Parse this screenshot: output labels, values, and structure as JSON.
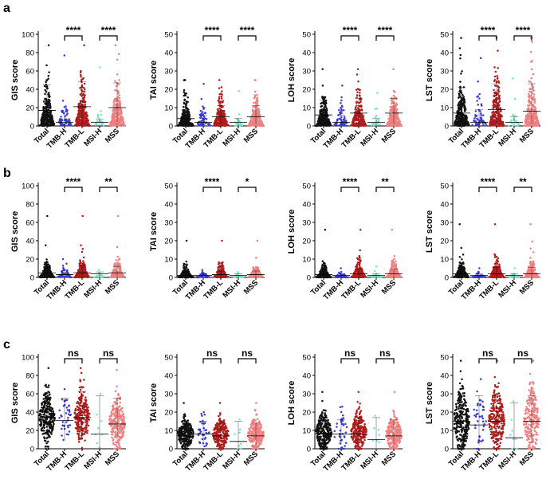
{
  "panel_labels": [
    "a",
    "b",
    "c"
  ],
  "colors": {
    "Total": "#111111",
    "TMB-H": "#3a3ad6",
    "TMB-L": "#b01c1c",
    "MSI-H": "#72e8c8",
    "MSS": "#f07f7f",
    "axis": "#000000"
  },
  "chart_data": [
    {
      "type": "scatter",
      "row": 0,
      "col": 0,
      "ylabel": "GIS score",
      "ylim": [
        0,
        100
      ],
      "yticks": [
        0,
        20,
        40,
        60,
        80,
        100
      ],
      "categories": [
        "Total",
        "TMB-H",
        "TMB-L",
        "MSI-H",
        "MSS"
      ],
      "series": [
        {
          "name": "Total",
          "max": 88,
          "n": 300,
          "scale": 16,
          "center": 17,
          "low": 1,
          "high": 45
        },
        {
          "name": "TMB-H",
          "max": 77,
          "n": 60,
          "scale": 10,
          "center": 4,
          "low": 1,
          "high": 15
        },
        {
          "name": "TMB-L",
          "max": 88,
          "n": 260,
          "scale": 18,
          "center": 21,
          "low": 1,
          "high": 48
        },
        {
          "name": "MSI-H",
          "max": 64,
          "n": 22,
          "scale": 5,
          "center": 4,
          "low": 1,
          "high": 7
        },
        {
          "name": "MSS",
          "max": 88,
          "n": 260,
          "scale": 18,
          "center": 20,
          "low": 1,
          "high": 47
        }
      ],
      "comparisons": [
        {
          "from": "TMB-H",
          "to": "TMB-L",
          "label": "****"
        },
        {
          "from": "MSI-H",
          "to": "MSS",
          "label": "****"
        }
      ]
    },
    {
      "type": "scatter",
      "row": 0,
      "col": 1,
      "ylabel": "TAI score",
      "ylim": [
        0,
        50
      ],
      "yticks": [
        0,
        10,
        20,
        30,
        40,
        50
      ],
      "categories": [
        "Total",
        "TMB-H",
        "TMB-L",
        "MSI-H",
        "MSS"
      ],
      "series": [
        {
          "name": "Total",
          "max": 25,
          "n": 280,
          "scale": 5,
          "center": 4,
          "low": 1,
          "high": 9
        },
        {
          "name": "TMB-H",
          "max": 23,
          "n": 60,
          "scale": 4,
          "center": 2,
          "low": 0.5,
          "high": 6
        },
        {
          "name": "TMB-L",
          "max": 25,
          "n": 240,
          "scale": 6,
          "center": 5,
          "low": 1,
          "high": 11
        },
        {
          "name": "MSI-H",
          "max": 19,
          "n": 22,
          "scale": 3,
          "center": 2,
          "low": 0.5,
          "high": 4
        },
        {
          "name": "MSS",
          "max": 25,
          "n": 240,
          "scale": 6,
          "center": 5,
          "low": 1,
          "high": 11
        }
      ],
      "comparisons": [
        {
          "from": "TMB-H",
          "to": "TMB-L",
          "label": "****"
        },
        {
          "from": "MSI-H",
          "to": "MSS",
          "label": "****"
        }
      ]
    },
    {
      "type": "scatter",
      "row": 0,
      "col": 2,
      "ylabel": "LOH score",
      "ylim": [
        0,
        50
      ],
      "yticks": [
        0,
        10,
        20,
        30,
        40,
        50
      ],
      "categories": [
        "Total",
        "TMB-H",
        "TMB-L",
        "MSI-H",
        "MSS"
      ],
      "series": [
        {
          "name": "Total",
          "max": 31,
          "n": 280,
          "scale": 6,
          "center": 6,
          "low": 1,
          "high": 14
        },
        {
          "name": "TMB-H",
          "max": 22,
          "n": 60,
          "scale": 4,
          "center": 2,
          "low": 0.5,
          "high": 6
        },
        {
          "name": "TMB-L",
          "max": 31,
          "n": 240,
          "scale": 7,
          "center": 7,
          "low": 1,
          "high": 15
        },
        {
          "name": "MSI-H",
          "max": 18,
          "n": 22,
          "scale": 3,
          "center": 2,
          "low": 0.5,
          "high": 4
        },
        {
          "name": "MSS",
          "max": 31,
          "n": 240,
          "scale": 7,
          "center": 7,
          "low": 1,
          "high": 15
        }
      ],
      "comparisons": [
        {
          "from": "TMB-H",
          "to": "TMB-L",
          "label": "****"
        },
        {
          "from": "MSI-H",
          "to": "MSS",
          "label": "****"
        }
      ]
    },
    {
      "type": "scatter",
      "row": 0,
      "col": 3,
      "ylabel": "LST score",
      "ylim": [
        0,
        50
      ],
      "yticks": [
        0,
        10,
        20,
        30,
        40,
        50
      ],
      "categories": [
        "Total",
        "TMB-H",
        "TMB-L",
        "MSI-H",
        "MSS"
      ],
      "series": [
        {
          "name": "Total",
          "max": 48,
          "n": 280,
          "scale": 9,
          "center": 7,
          "low": 1,
          "high": 21
        },
        {
          "name": "TMB-H",
          "max": 37,
          "n": 60,
          "scale": 6,
          "center": 2,
          "low": 0.5,
          "high": 9
        },
        {
          "name": "TMB-L",
          "max": 48,
          "n": 240,
          "scale": 10,
          "center": 9,
          "low": 1,
          "high": 23
        },
        {
          "name": "MSI-H",
          "max": 26,
          "n": 22,
          "scale": 4,
          "center": 2,
          "low": 0.5,
          "high": 5
        },
        {
          "name": "MSS",
          "max": 48,
          "n": 240,
          "scale": 10,
          "center": 8,
          "low": 1,
          "high": 23
        }
      ],
      "comparisons": [
        {
          "from": "TMB-H",
          "to": "TMB-L",
          "label": "****"
        },
        {
          "from": "MSI-H",
          "to": "MSS",
          "label": "****"
        }
      ]
    },
    {
      "type": "scatter",
      "row": 1,
      "col": 0,
      "ylabel": "GIS score",
      "ylim": [
        0,
        100
      ],
      "yticks": [
        0,
        20,
        40,
        60,
        80,
        100
      ],
      "categories": [
        "Total",
        "TMB-H",
        "TMB-L",
        "MSI-H",
        "MSS"
      ],
      "series": [
        {
          "name": "Total",
          "max": 67,
          "n": 260,
          "scale": 6,
          "center": 5,
          "low": 1,
          "high": 12
        },
        {
          "name": "TMB-H",
          "max": 20,
          "n": 55,
          "scale": 4,
          "center": 3,
          "low": 1,
          "high": 6
        },
        {
          "name": "TMB-L",
          "max": 67,
          "n": 220,
          "scale": 7,
          "center": 5,
          "low": 1,
          "high": 13
        },
        {
          "name": "MSI-H",
          "max": 8,
          "n": 20,
          "scale": 2,
          "center": 4,
          "low": 1,
          "high": 6
        },
        {
          "name": "MSS",
          "max": 67,
          "n": 220,
          "scale": 7,
          "center": 5,
          "low": 1,
          "high": 12
        }
      ],
      "comparisons": [
        {
          "from": "TMB-H",
          "to": "TMB-L",
          "label": "****"
        },
        {
          "from": "MSI-H",
          "to": "MSS",
          "label": "**"
        }
      ]
    },
    {
      "type": "scatter",
      "row": 1,
      "col": 1,
      "ylabel": "TAI score",
      "ylim": [
        0,
        50
      ],
      "yticks": [
        0,
        10,
        20,
        30,
        40,
        50
      ],
      "categories": [
        "Total",
        "TMB-H",
        "TMB-L",
        "MSI-H",
        "MSS"
      ],
      "series": [
        {
          "name": "Total",
          "max": 20,
          "n": 240,
          "scale": 2,
          "center": 1,
          "low": 0.3,
          "high": 3
        },
        {
          "name": "TMB-H",
          "max": 4,
          "n": 50,
          "scale": 1,
          "center": 1,
          "low": 0.3,
          "high": 2
        },
        {
          "name": "TMB-L",
          "max": 20,
          "n": 200,
          "scale": 2.5,
          "center": 1.5,
          "low": 0.3,
          "high": 3.5
        },
        {
          "name": "MSI-H",
          "max": 3,
          "n": 20,
          "scale": 0.8,
          "center": 1,
          "low": 0.3,
          "high": 2
        },
        {
          "name": "MSS",
          "max": 20,
          "n": 200,
          "scale": 2.5,
          "center": 1.5,
          "low": 0.3,
          "high": 3.5
        }
      ],
      "comparisons": [
        {
          "from": "TMB-H",
          "to": "TMB-L",
          "label": "****"
        },
        {
          "from": "MSI-H",
          "to": "MSS",
          "label": "*"
        }
      ]
    },
    {
      "type": "scatter",
      "row": 1,
      "col": 2,
      "ylabel": "LOH score",
      "ylim": [
        0,
        50
      ],
      "yticks": [
        0,
        10,
        20,
        30,
        40,
        50
      ],
      "categories": [
        "Total",
        "TMB-H",
        "TMB-L",
        "MSI-H",
        "MSS"
      ],
      "series": [
        {
          "name": "Total",
          "max": 26,
          "n": 240,
          "scale": 2.5,
          "center": 1.5,
          "low": 0.3,
          "high": 4
        },
        {
          "name": "TMB-H",
          "max": 5,
          "n": 50,
          "scale": 1.2,
          "center": 1,
          "low": 0.3,
          "high": 2
        },
        {
          "name": "TMB-L",
          "max": 26,
          "n": 200,
          "scale": 3,
          "center": 2,
          "low": 0.3,
          "high": 4.5
        },
        {
          "name": "MSI-H",
          "max": 6,
          "n": 20,
          "scale": 1,
          "center": 1,
          "low": 0.3,
          "high": 2
        },
        {
          "name": "MSS",
          "max": 26,
          "n": 200,
          "scale": 3,
          "center": 2,
          "low": 0.3,
          "high": 4.5
        }
      ],
      "comparisons": [
        {
          "from": "TMB-H",
          "to": "TMB-L",
          "label": "****"
        },
        {
          "from": "MSI-H",
          "to": "MSS",
          "label": "**"
        }
      ]
    },
    {
      "type": "scatter",
      "row": 1,
      "col": 3,
      "ylabel": "LST score",
      "ylim": [
        0,
        50
      ],
      "yticks": [
        0,
        10,
        20,
        30,
        40,
        50
      ],
      "categories": [
        "Total",
        "TMB-H",
        "TMB-L",
        "MSI-H",
        "MSS"
      ],
      "series": [
        {
          "name": "Total",
          "max": 29,
          "n": 240,
          "scale": 3,
          "center": 2,
          "low": 0.3,
          "high": 5
        },
        {
          "name": "TMB-H",
          "max": 5,
          "n": 50,
          "scale": 1.2,
          "center": 1,
          "low": 0.3,
          "high": 2
        },
        {
          "name": "TMB-L",
          "max": 29,
          "n": 200,
          "scale": 3.5,
          "center": 2,
          "low": 0.3,
          "high": 5.5
        },
        {
          "name": "MSI-H",
          "max": 5,
          "n": 20,
          "scale": 1,
          "center": 1,
          "low": 0.3,
          "high": 2
        },
        {
          "name": "MSS",
          "max": 29,
          "n": 200,
          "scale": 3.5,
          "center": 2,
          "low": 0.3,
          "high": 5.5
        }
      ],
      "comparisons": [
        {
          "from": "TMB-H",
          "to": "TMB-L",
          "label": "****"
        },
        {
          "from": "MSI-H",
          "to": "MSS",
          "label": "**"
        }
      ]
    },
    {
      "type": "scatter",
      "row": 2,
      "col": 0,
      "ylabel": "GIS score",
      "ylim": [
        0,
        100
      ],
      "yticks": [
        0,
        20,
        40,
        60,
        80,
        100
      ],
      "categories": [
        "Total",
        "TMB-H",
        "TMB-L",
        "MSI-H",
        "MSS"
      ],
      "series": [
        {
          "name": "Total",
          "max": 88,
          "n": 260,
          "mean": 34,
          "sd": 14,
          "center": 34,
          "low": 10,
          "high": 60,
          "dist": "normal"
        },
        {
          "name": "TMB-H",
          "max": 65,
          "n": 40,
          "mean": 31,
          "sd": 15,
          "center": 31,
          "low": 10,
          "high": 55,
          "dist": "normal"
        },
        {
          "name": "TMB-L",
          "max": 88,
          "n": 240,
          "mean": 34,
          "sd": 15,
          "center": 34,
          "low": 10,
          "high": 62,
          "dist": "normal"
        },
        {
          "name": "MSI-H",
          "max": 60,
          "n": 8,
          "mean": 20,
          "sd": 18,
          "center": 16,
          "low": 1,
          "high": 58,
          "dist": "normal"
        },
        {
          "name": "MSS",
          "max": 86,
          "n": 240,
          "mean": 28,
          "sd": 15,
          "center": 27,
          "low": 8,
          "high": 55,
          "dist": "normal"
        }
      ],
      "comparisons": [
        {
          "from": "TMB-H",
          "to": "TMB-L",
          "label": "ns"
        },
        {
          "from": "MSI-H",
          "to": "MSS",
          "label": "ns"
        }
      ]
    },
    {
      "type": "scatter",
      "row": 2,
      "col": 1,
      "ylabel": "TAI score",
      "ylim": [
        0,
        50
      ],
      "yticks": [
        0,
        10,
        20,
        30,
        40,
        50
      ],
      "categories": [
        "Total",
        "TMB-H",
        "TMB-L",
        "MSI-H",
        "MSS"
      ],
      "series": [
        {
          "name": "Total",
          "max": 25,
          "n": 260,
          "mean": 8,
          "sd": 4.5,
          "center": 7,
          "low": 2,
          "high": 14,
          "dist": "normal"
        },
        {
          "name": "TMB-H",
          "max": 20,
          "n": 40,
          "mean": 8,
          "sd": 4.5,
          "center": 8,
          "low": 3,
          "high": 15,
          "dist": "normal"
        },
        {
          "name": "TMB-L",
          "max": 25,
          "n": 240,
          "mean": 8,
          "sd": 4.5,
          "center": 7,
          "low": 2,
          "high": 14,
          "dist": "normal"
        },
        {
          "name": "MSI-H",
          "max": 16,
          "n": 8,
          "mean": 5,
          "sd": 5,
          "center": 4,
          "low": 0.5,
          "high": 15,
          "dist": "normal"
        },
        {
          "name": "MSS",
          "max": 25,
          "n": 240,
          "mean": 8,
          "sd": 4.5,
          "center": 7,
          "low": 2,
          "high": 14,
          "dist": "normal"
        }
      ],
      "comparisons": [
        {
          "from": "TMB-H",
          "to": "TMB-L",
          "label": "ns"
        },
        {
          "from": "MSI-H",
          "to": "MSS",
          "label": "ns"
        }
      ]
    },
    {
      "type": "scatter",
      "row": 2,
      "col": 2,
      "ylabel": "LOH score",
      "ylim": [
        0,
        50
      ],
      "yticks": [
        0,
        10,
        20,
        30,
        40,
        50
      ],
      "categories": [
        "Total",
        "TMB-H",
        "TMB-L",
        "MSI-H",
        "MSS"
      ],
      "series": [
        {
          "name": "Total",
          "max": 31,
          "n": 260,
          "mean": 9,
          "sd": 5.5,
          "center": 8,
          "low": 2,
          "high": 17,
          "dist": "normal"
        },
        {
          "name": "TMB-H",
          "max": 23,
          "n": 40,
          "mean": 8,
          "sd": 5,
          "center": 8,
          "low": 2,
          "high": 16,
          "dist": "normal"
        },
        {
          "name": "TMB-L",
          "max": 31,
          "n": 240,
          "mean": 9,
          "sd": 5.5,
          "center": 8,
          "low": 2,
          "high": 17,
          "dist": "normal"
        },
        {
          "name": "MSI-H",
          "max": 18,
          "n": 8,
          "mean": 6,
          "sd": 6,
          "center": 5,
          "low": 0.5,
          "high": 17,
          "dist": "normal"
        },
        {
          "name": "MSS",
          "max": 31,
          "n": 240,
          "mean": 8,
          "sd": 5,
          "center": 7,
          "low": 2,
          "high": 16,
          "dist": "normal"
        }
      ],
      "comparisons": [
        {
          "from": "TMB-H",
          "to": "TMB-L",
          "label": "ns"
        },
        {
          "from": "MSI-H",
          "to": "MSS",
          "label": "ns"
        }
      ]
    },
    {
      "type": "scatter",
      "row": 2,
      "col": 3,
      "ylabel": "LST score",
      "ylim": [
        0,
        50
      ],
      "yticks": [
        0,
        10,
        20,
        30,
        40,
        50
      ],
      "categories": [
        "Total",
        "TMB-H",
        "TMB-L",
        "MSI-H",
        "MSS"
      ],
      "series": [
        {
          "name": "Total",
          "max": 48,
          "n": 260,
          "mean": 15,
          "sd": 9,
          "center": 15,
          "low": 3,
          "high": 29,
          "dist": "normal"
        },
        {
          "name": "TMB-H",
          "max": 38,
          "n": 40,
          "mean": 14,
          "sd": 9,
          "center": 13,
          "low": 2,
          "high": 29,
          "dist": "normal"
        },
        {
          "name": "TMB-L",
          "max": 48,
          "n": 240,
          "mean": 15,
          "sd": 9,
          "center": 15,
          "low": 3,
          "high": 29,
          "dist": "normal"
        },
        {
          "name": "MSI-H",
          "max": 26,
          "n": 8,
          "mean": 8,
          "sd": 8,
          "center": 6,
          "low": 0.5,
          "high": 25,
          "dist": "normal"
        },
        {
          "name": "MSS",
          "max": 48,
          "n": 240,
          "mean": 15,
          "sd": 9,
          "center": 15,
          "low": 3,
          "high": 29,
          "dist": "normal"
        }
      ],
      "comparisons": [
        {
          "from": "TMB-H",
          "to": "TMB-L",
          "label": "ns"
        },
        {
          "from": "MSI-H",
          "to": "MSS",
          "label": "ns"
        }
      ]
    }
  ]
}
